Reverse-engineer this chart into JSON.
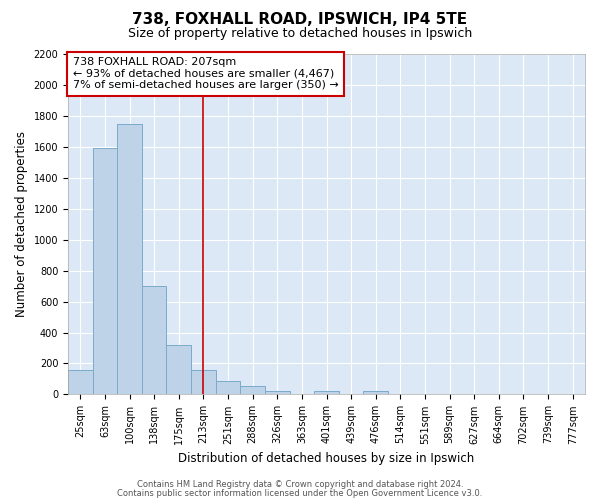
{
  "title": "738, FOXHALL ROAD, IPSWICH, IP4 5TE",
  "subtitle": "Size of property relative to detached houses in Ipswich",
  "xlabel": "Distribution of detached houses by size in Ipswich",
  "ylabel": "Number of detached properties",
  "categories": [
    "25sqm",
    "63sqm",
    "100sqm",
    "138sqm",
    "175sqm",
    "213sqm",
    "251sqm",
    "288sqm",
    "326sqm",
    "363sqm",
    "401sqm",
    "439sqm",
    "476sqm",
    "514sqm",
    "551sqm",
    "589sqm",
    "627sqm",
    "664sqm",
    "702sqm",
    "739sqm",
    "777sqm"
  ],
  "values": [
    155,
    1595,
    1750,
    700,
    320,
    155,
    90,
    55,
    25,
    0,
    20,
    0,
    20,
    0,
    0,
    0,
    0,
    0,
    0,
    0,
    0
  ],
  "bar_color": "#bed3e8",
  "bar_edge_color": "#7aaacb",
  "vline_x_index": 5,
  "vline_color": "#cc0000",
  "annotation_line1": "738 FOXHALL ROAD: 207sqm",
  "annotation_line2": "← 93% of detached houses are smaller (4,467)",
  "annotation_line3": "7% of semi-detached houses are larger (350) →",
  "annotation_box_edge": "#cc0000",
  "footer_line1": "Contains HM Land Registry data © Crown copyright and database right 2024.",
  "footer_line2": "Contains public sector information licensed under the Open Government Licence v3.0.",
  "ylim": [
    0,
    2200
  ],
  "yticks": [
    0,
    200,
    400,
    600,
    800,
    1000,
    1200,
    1400,
    1600,
    1800,
    2000,
    2200
  ],
  "bg_color": "#dce8f5",
  "title_fontsize": 11,
  "subtitle_fontsize": 9,
  "axis_fontsize": 8.5,
  "tick_fontsize": 7,
  "footer_fontsize": 6,
  "annot_fontsize": 8
}
